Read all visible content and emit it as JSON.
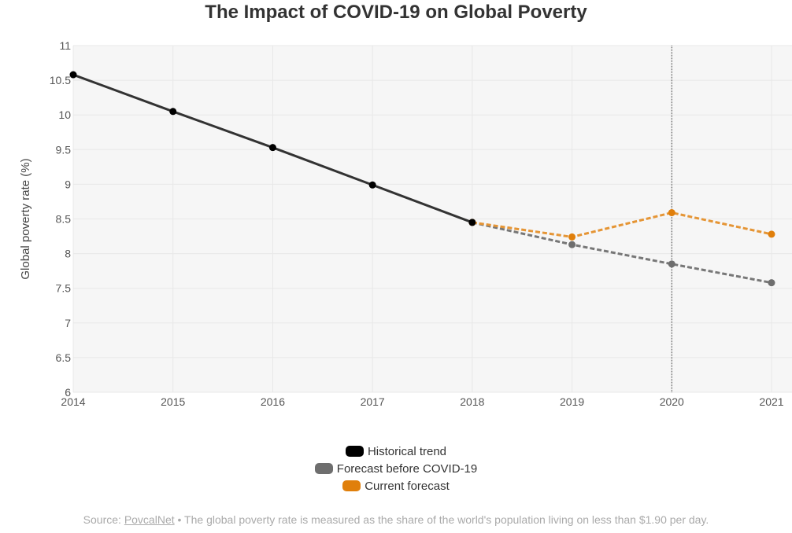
{
  "chart_data": {
    "type": "line",
    "title": "The Impact of COVID-19 on Global Poverty",
    "xlabel": "",
    "ylabel": "Global poverty rate (%)",
    "xlim": [
      2014,
      2021
    ],
    "ylim": [
      6,
      11
    ],
    "x_ticks": [
      "2014",
      "2015",
      "2016",
      "2017",
      "2018",
      "2019",
      "2020",
      "2021"
    ],
    "y_ticks": [
      "6",
      "6.5",
      "7",
      "7.5",
      "8",
      "8.5",
      "9",
      "9.5",
      "10",
      "10.5",
      "11"
    ],
    "grid": true,
    "legend_placement": "bottom-center",
    "reference_line": {
      "x": 2020,
      "style": "dotted"
    },
    "series": [
      {
        "name": "Historical trend",
        "color": "#000000",
        "line_color": "#333333",
        "dash": false,
        "x": [
          2014,
          2015,
          2016,
          2017,
          2018
        ],
        "values": [
          10.58,
          10.05,
          9.53,
          8.99,
          8.45
        ]
      },
      {
        "name": "Forecast before COVID-19",
        "color": "#6e6e6e",
        "line_color": "#777777",
        "dash": true,
        "x": [
          2018,
          2019,
          2020,
          2021
        ],
        "values": [
          8.45,
          8.13,
          7.85,
          7.58
        ]
      },
      {
        "name": "Current forecast",
        "color": "#e07f0b",
        "line_color": "#e59535",
        "dash": true,
        "x": [
          2018,
          2019,
          2020,
          2021
        ],
        "values": [
          8.45,
          8.24,
          8.59,
          8.28
        ]
      }
    ]
  },
  "footer": {
    "prefix": "Source: ",
    "link": "PovcalNet",
    "text": " • The global poverty rate is measured as the share of the world's population living on less than $1.90 per day."
  }
}
